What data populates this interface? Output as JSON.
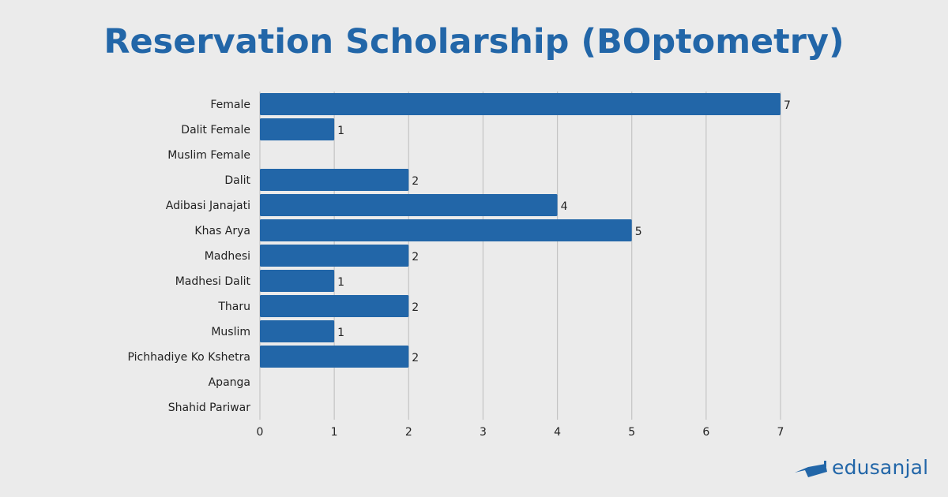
{
  "chart_data": {
    "type": "bar",
    "orientation": "horizontal",
    "title": "Reservation Scholarship (BOptometry)",
    "categories": [
      "Female",
      "Dalit Female",
      "Muslim Female",
      "Dalit",
      "Adibasi Janajati",
      "Khas Arya",
      "Madhesi",
      "Madhesi Dalit",
      "Tharu",
      "Muslim",
      "Pichhadiye Ko Kshetra",
      "Apanga",
      "Shahid Pariwar"
    ],
    "values": [
      7,
      1,
      0,
      2,
      4,
      5,
      2,
      1,
      2,
      1,
      2,
      0,
      0
    ],
    "xlim": [
      0,
      7
    ],
    "xticks": [
      "0",
      "1",
      "2",
      "3",
      "4",
      "5",
      "6",
      "7"
    ],
    "grid": true,
    "bar_color": "#2266a8",
    "xlabel": "",
    "ylabel": ""
  },
  "brand": {
    "name": "edusanjal",
    "color": "#2266a8"
  }
}
